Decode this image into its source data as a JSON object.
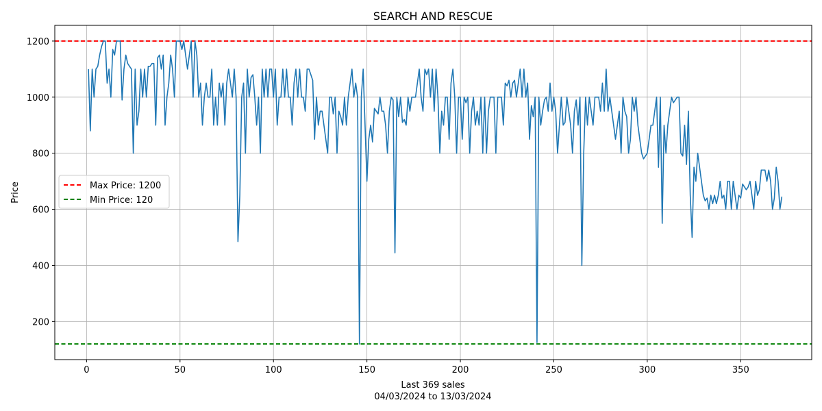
{
  "chart_data": {
    "type": "line",
    "title": "SEARCH AND RESCUE",
    "xlabel_line1": "Last 369 sales",
    "xlabel_line2": "04/03/2024 to 13/03/2024",
    "ylabel": "Price",
    "xlim": [
      -17,
      388
    ],
    "ylim": [
      64,
      1256
    ],
    "xticks": [
      0,
      50,
      100,
      150,
      200,
      250,
      300,
      350
    ],
    "yticks": [
      200,
      400,
      600,
      800,
      1000,
      1200
    ],
    "grid": true,
    "legend_placement": "center-left",
    "series": [
      {
        "name": "Price",
        "color": "#1f77b4",
        "values": [
          1100,
          880,
          1100,
          1000,
          1100,
          1110,
          1150,
          1180,
          1200,
          1200,
          1050,
          1100,
          1000,
          1170,
          1150,
          1200,
          1200,
          1200,
          990,
          1100,
          1150,
          1120,
          1110,
          1100,
          800,
          1100,
          900,
          950,
          1100,
          1000,
          1100,
          1000,
          1110,
          1110,
          1120,
          1120,
          900,
          1140,
          1150,
          1100,
          1150,
          900,
          1000,
          1050,
          1150,
          1100,
          1000,
          1200,
          1200,
          1200,
          1170,
          1200,
          1150,
          1100,
          1150,
          1200,
          1000,
          1200,
          1150,
          1000,
          1050,
          900,
          1000,
          1050,
          1000,
          1000,
          1100,
          900,
          1000,
          900,
          1050,
          1000,
          1050,
          900,
          1050,
          1100,
          1050,
          1000,
          1100,
          1000,
          485,
          650,
          1000,
          1050,
          800,
          1100,
          1000,
          1070,
          1080,
          1000,
          900,
          1000,
          800,
          1100,
          1000,
          1100,
          1000,
          1100,
          1100,
          1000,
          1100,
          900,
          1000,
          1000,
          1100,
          1000,
          1100,
          1000,
          1000,
          900,
          1050,
          1100,
          1000,
          1100,
          1000,
          1000,
          950,
          1100,
          1100,
          1080,
          1060,
          850,
          1000,
          900,
          950,
          950,
          900,
          850,
          800,
          1000,
          1000,
          940,
          1000,
          800,
          950,
          930,
          900,
          1000,
          900,
          1000,
          1050,
          1100,
          1000,
          1050,
          1000,
          120,
          1000,
          1100,
          900,
          700,
          850,
          900,
          840,
          960,
          950,
          940,
          1000,
          950,
          950,
          900,
          800,
          950,
          1000,
          990,
          445,
          1000,
          930,
          1000,
          910,
          920,
          900,
          1000,
          950,
          1000,
          1000,
          1000,
          1050,
          1100,
          1000,
          950,
          1100,
          1080,
          1100,
          1000,
          1100,
          950,
          1100,
          1000,
          800,
          950,
          900,
          1000,
          1000,
          850,
          1050,
          1100,
          1000,
          800,
          1000,
          1000,
          850,
          1000,
          980,
          1000,
          800,
          950,
          1000,
          900,
          950,
          900,
          1000,
          800,
          1000,
          800,
          950,
          1000,
          1000,
          1000,
          800,
          1000,
          1000,
          1000,
          900,
          1050,
          1040,
          1060,
          1000,
          1050,
          1060,
          1000,
          1050,
          1100,
          1000,
          1100,
          1000,
          1050,
          850,
          970,
          930,
          1000,
          125,
          1000,
          900,
          950,
          990,
          1000,
          950,
          1050,
          950,
          1000,
          950,
          800,
          900,
          1000,
          900,
          910,
          1000,
          950,
          900,
          800,
          950,
          990,
          900,
          1000,
          400,
          800,
          1000,
          900,
          1000,
          950,
          900,
          1000,
          1000,
          1000,
          950,
          1050,
          950,
          1100,
          950,
          1000,
          950,
          900,
          850,
          900,
          950,
          800,
          1000,
          950,
          930,
          800,
          850,
          1000,
          950,
          1000,
          900,
          850,
          800,
          780,
          790,
          800,
          850,
          900,
          900,
          950,
          1000,
          750,
          1000,
          550,
          900,
          800,
          900,
          950,
          1000,
          980,
          990,
          1000,
          1000,
          800,
          790,
          900,
          760,
          950,
          650,
          500,
          750,
          700,
          800,
          750,
          700,
          650,
          630,
          640,
          600,
          650,
          620,
          650,
          620,
          650,
          700,
          640,
          650,
          600,
          700,
          700,
          600,
          700,
          650,
          600,
          650,
          640,
          690,
          680,
          670,
          680,
          700,
          650,
          600,
          700,
          650,
          670,
          740,
          740,
          740,
          700,
          740,
          700,
          600,
          640,
          750,
          700,
          600,
          645
        ]
      }
    ],
    "reference_lines": [
      {
        "label": "Max Price: 1200",
        "value": 1200,
        "color": "#ff0000"
      },
      {
        "label": "Min Price: 120",
        "value": 120,
        "color": "#008000"
      }
    ]
  }
}
